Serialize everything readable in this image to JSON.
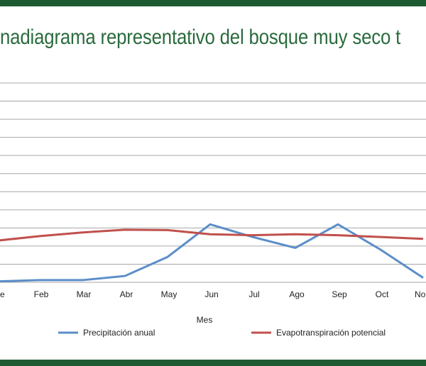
{
  "chart_data": {
    "type": "line",
    "title": "Climadiagrama representativo del bosque muy seco tropical",
    "title_visible": "nadiagrama representativo del bosque muy seco t",
    "xlabel": "Mes",
    "ylabel": "",
    "categories": [
      "Ene",
      "Feb",
      "Mar",
      "Abr",
      "May",
      "Jun",
      "Jul",
      "Ago",
      "Sep",
      "Oct",
      "Nov"
    ],
    "categories_visible": [
      "e",
      "Feb",
      "Mar",
      "Abr",
      "May",
      "Jun",
      "Jul",
      "Ago",
      "Sep",
      "Oct",
      "No"
    ],
    "ylim": [
      0,
      11
    ],
    "grid": true,
    "legend_position": "bottom",
    "series": [
      {
        "name": "Precipitación anual",
        "color": "#5b8ec9",
        "values": [
          0.05,
          0.12,
          0.12,
          0.35,
          1.4,
          3.2,
          2.5,
          1.9,
          3.2,
          1.8,
          0.25
        ]
      },
      {
        "name": "Evapotranspiración potencial",
        "color": "#c0504d",
        "values": [
          2.3,
          2.55,
          2.75,
          2.9,
          2.88,
          2.65,
          2.6,
          2.65,
          2.6,
          2.5,
          2.4
        ]
      }
    ]
  }
}
